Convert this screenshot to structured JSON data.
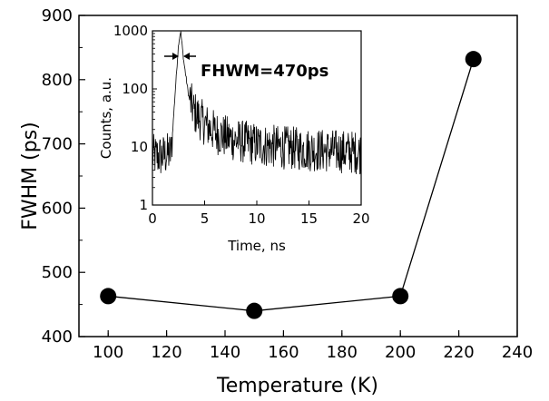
{
  "chart_data": [
    {
      "type": "line",
      "title": "",
      "xlabel": "Temperature (K)",
      "ylabel": "FWHM (ps)",
      "xlim": [
        90,
        240
      ],
      "ylim": [
        400,
        900
      ],
      "xticks": [
        "100",
        "120",
        "140",
        "160",
        "180",
        "200",
        "220",
        "240"
      ],
      "yticks": [
        "400",
        "500",
        "600",
        "700",
        "800",
        "900"
      ],
      "markers": "filled-circle",
      "series": [
        {
          "x": [
            100,
            150,
            200,
            225
          ],
          "y": [
            463,
            440,
            463,
            832
          ]
        }
      ]
    },
    {
      "type": "line",
      "title": "",
      "xlabel": "Time, ns",
      "ylabel": "Counts, a.u.",
      "yscale": "log",
      "xlim": [
        0,
        20
      ],
      "ylim": [
        1,
        1000
      ],
      "xticks": [
        "0",
        "5",
        "10",
        "15",
        "20"
      ],
      "yticks": [
        "1",
        "10",
        "100",
        "1000"
      ],
      "annotation": "FHWM=470ps",
      "series": [
        {
          "x": [
            0,
            1.0,
            1.8,
            2.2,
            2.5,
            2.7,
            3.0,
            3.5,
            4.0,
            5.0,
            6.0,
            7.0,
            8.0,
            10.0,
            12.0,
            15.0,
            20.0
          ],
          "y": [
            7,
            7,
            8,
            100,
            600,
            1000,
            300,
            70,
            40,
            25,
            18,
            15,
            13,
            11,
            10,
            9,
            8
          ]
        }
      ]
    }
  ]
}
